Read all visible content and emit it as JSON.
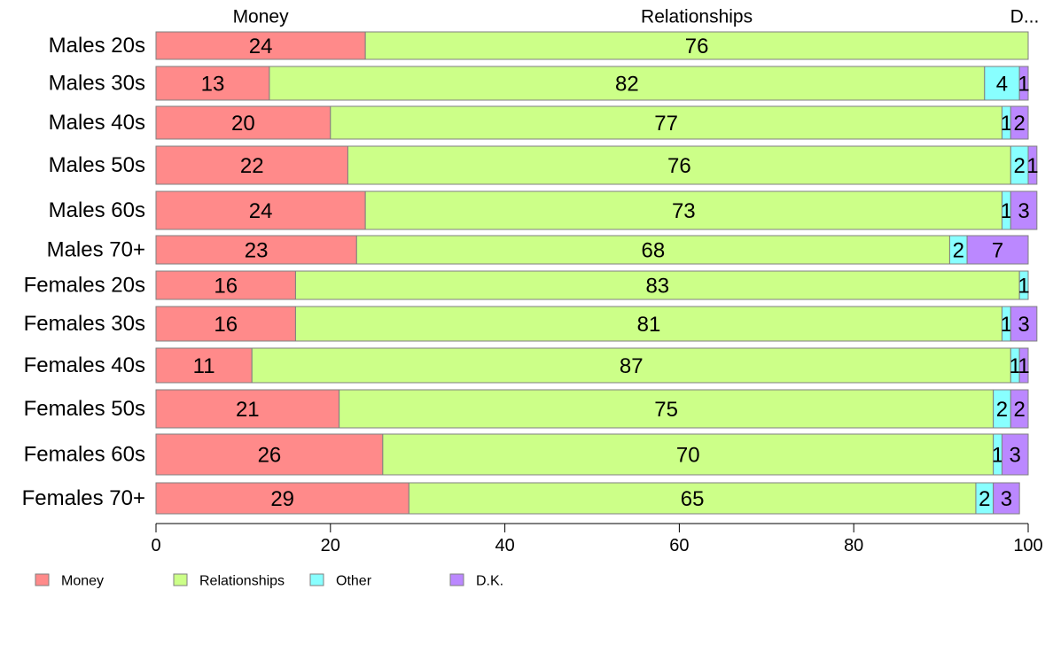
{
  "chart_data": {
    "type": "bar",
    "orientation": "horizontal",
    "stacked": true,
    "categories": [
      "Males 20s",
      "Males 30s",
      "Males 40s",
      "Males 50s",
      "Males 60s",
      "Males 70+",
      "Females 20s",
      "Females 30s",
      "Females 40s",
      "Females 50s",
      "Females 60s",
      "Females 70+"
    ],
    "series": [
      {
        "name": "Money",
        "color": "#ff8a8a",
        "values": [
          24,
          13,
          20,
          22,
          24,
          23,
          16,
          16,
          11,
          21,
          26,
          29
        ]
      },
      {
        "name": "Relationships",
        "color": "#ccff88",
        "values": [
          76,
          82,
          77,
          76,
          73,
          68,
          83,
          81,
          87,
          75,
          70,
          65
        ]
      },
      {
        "name": "Other",
        "color": "#88ffff",
        "values": [
          0,
          4,
          1,
          2,
          1,
          2,
          1,
          1,
          1,
          2,
          1,
          2
        ]
      },
      {
        "name": "D.K.",
        "color": "#bb88ff",
        "values": [
          0,
          1,
          2,
          1,
          3,
          7,
          0,
          3,
          1,
          2,
          3,
          3
        ]
      }
    ],
    "top_labels": [
      "Money",
      "Relationships",
      "D..."
    ],
    "xlim": [
      0,
      100
    ],
    "xticks": [
      0,
      20,
      40,
      60,
      80,
      100
    ],
    "grid": false,
    "legend_position": "bottom-left",
    "xlabel": "",
    "ylabel": "",
    "title": ""
  }
}
